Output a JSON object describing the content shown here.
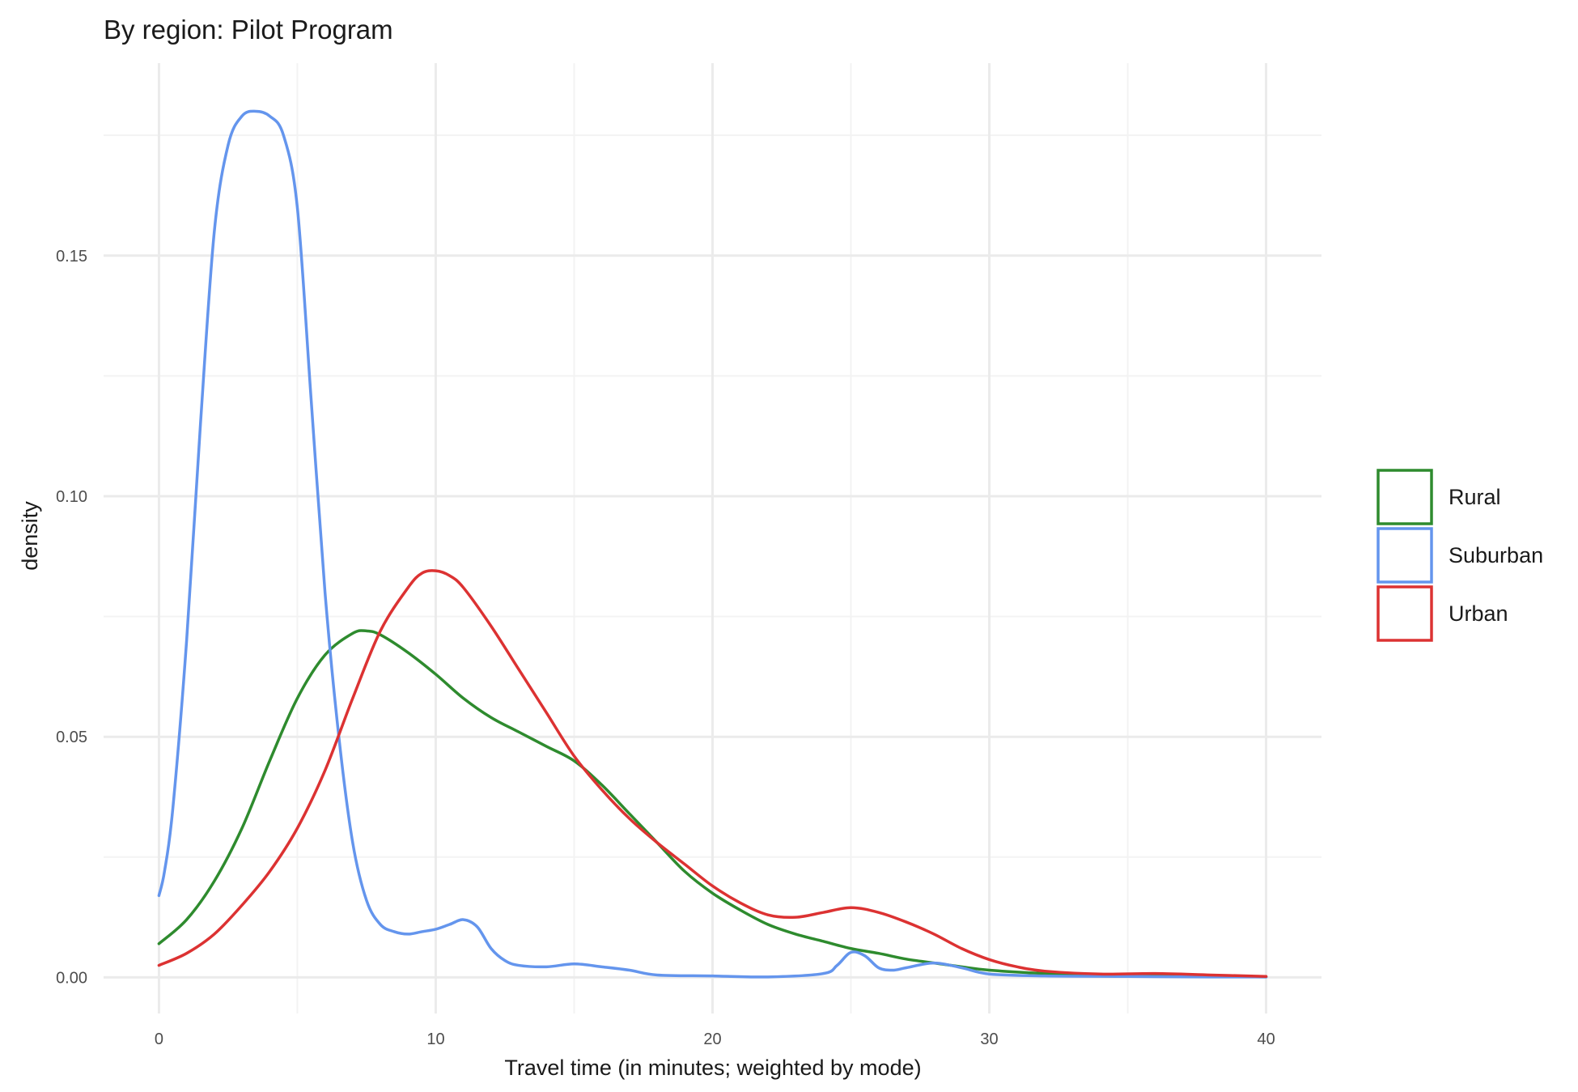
{
  "chart_data": {
    "type": "line",
    "subtype": "density",
    "title": "By region: Pilot Program",
    "xlabel": "Travel time (in minutes; weighted by mode)",
    "ylabel": "density",
    "xlim": [
      -2,
      42
    ],
    "ylim": [
      -0.0075,
      0.19
    ],
    "x_ticks": [
      0,
      10,
      20,
      30,
      40
    ],
    "x_tick_labels": [
      "0",
      "10",
      "20",
      "30",
      "40"
    ],
    "y_ticks": [
      0.0,
      0.05,
      0.1,
      0.15
    ],
    "y_tick_labels": [
      "0.00",
      "0.05",
      "0.10",
      "0.15"
    ],
    "grid": true,
    "legend": {
      "placement": "right",
      "entries": [
        "Rural",
        "Suburban",
        "Urban"
      ]
    },
    "series": [
      {
        "name": "Rural",
        "color": "#2e8b2e",
        "x": [
          0,
          1,
          2,
          3,
          4,
          5,
          6,
          7,
          7.5,
          8,
          9,
          10,
          11,
          12,
          13,
          14,
          15,
          16,
          17,
          18,
          19,
          20,
          21,
          22,
          23,
          24,
          25,
          26,
          27,
          28,
          29,
          30,
          32,
          34,
          36,
          38,
          40
        ],
        "y": [
          0.007,
          0.012,
          0.02,
          0.031,
          0.045,
          0.058,
          0.067,
          0.0715,
          0.072,
          0.0712,
          0.0675,
          0.063,
          0.058,
          0.054,
          0.051,
          0.048,
          0.045,
          0.04,
          0.034,
          0.028,
          0.022,
          0.0175,
          0.014,
          0.011,
          0.009,
          0.0075,
          0.006,
          0.005,
          0.0038,
          0.003,
          0.0022,
          0.0015,
          0.0008,
          0.0004,
          0.0003,
          0.0002,
          0.0001
        ]
      },
      {
        "name": "Suburban",
        "color": "#6495ed",
        "x": [
          0,
          0.2,
          0.5,
          1,
          1.5,
          2,
          2.5,
          3,
          3.5,
          4,
          4.5,
          5,
          5.5,
          6,
          6.5,
          7,
          7.5,
          8,
          8.5,
          9,
          9.5,
          10,
          10.5,
          11,
          11.5,
          12,
          12.5,
          13,
          14,
          15,
          16,
          17,
          18,
          20,
          22,
          24,
          24.5,
          25,
          25.5,
          26,
          26.5,
          27,
          28,
          29,
          30,
          32,
          35,
          38,
          40
        ],
        "y": [
          0.017,
          0.022,
          0.035,
          0.07,
          0.115,
          0.155,
          0.173,
          0.179,
          0.18,
          0.179,
          0.175,
          0.16,
          0.12,
          0.08,
          0.05,
          0.028,
          0.016,
          0.011,
          0.0095,
          0.009,
          0.0095,
          0.01,
          0.011,
          0.012,
          0.0105,
          0.006,
          0.0035,
          0.0025,
          0.0022,
          0.0028,
          0.0022,
          0.0015,
          0.0005,
          0.0003,
          0.0001,
          0.0008,
          0.0025,
          0.0052,
          0.0045,
          0.002,
          0.0015,
          0.002,
          0.003,
          0.002,
          0.0007,
          0.0003,
          0.0002,
          0.0001,
          0.0001
        ]
      },
      {
        "name": "Urban",
        "color": "#dc3232",
        "x": [
          0,
          1,
          2,
          3,
          4,
          5,
          6,
          7,
          8,
          9,
          9.5,
          10,
          10.5,
          11,
          12,
          13,
          14,
          15,
          16,
          17,
          18,
          19,
          20,
          21,
          22,
          23,
          24,
          25,
          26,
          27,
          28,
          29,
          30,
          31,
          32,
          34,
          36,
          38,
          40
        ],
        "y": [
          0.0025,
          0.005,
          0.009,
          0.015,
          0.022,
          0.031,
          0.043,
          0.058,
          0.072,
          0.081,
          0.084,
          0.0845,
          0.0835,
          0.081,
          0.073,
          0.064,
          0.055,
          0.046,
          0.039,
          0.033,
          0.028,
          0.0235,
          0.019,
          0.0155,
          0.013,
          0.0125,
          0.0135,
          0.0145,
          0.0135,
          0.0115,
          0.009,
          0.006,
          0.0037,
          0.0022,
          0.0013,
          0.0007,
          0.0008,
          0.0005,
          0.0002
        ]
      }
    ]
  }
}
